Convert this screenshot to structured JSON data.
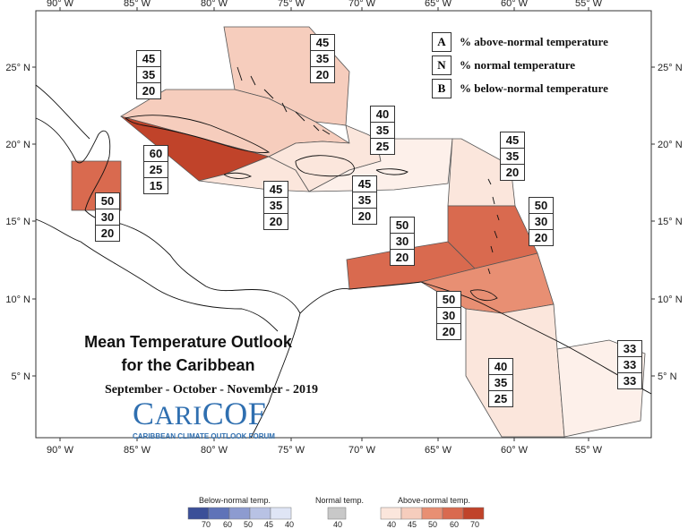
{
  "map": {
    "lon_labels": [
      "90° W",
      "85° W",
      "80° W",
      "75° W",
      "70° W",
      "65° W",
      "60° W",
      "55° W"
    ],
    "lat_labels": [
      "25° N",
      "20° N",
      "15° N",
      "10° N",
      "5° N"
    ],
    "colors": {
      "a70": "#c0432a",
      "a60": "#d96a4f",
      "a50": "#e88f73",
      "a45": "#f6cdbd",
      "a40": "#fbe6dc",
      "n": "#fdf0ea",
      "land_outline": "#111111",
      "frame": "#333333"
    }
  },
  "legend": {
    "items": [
      {
        "key": "A",
        "text": "% above-normal temperature"
      },
      {
        "key": "N",
        "text": "% normal temperature"
      },
      {
        "key": "B",
        "text": "% below-normal temperature"
      }
    ]
  },
  "title": {
    "line1": "Mean Temperature Outlook",
    "line2": "for the Caribbean",
    "period": "September - October - November - 2019"
  },
  "logo": {
    "main_first": "C",
    "main_rest": "ARI",
    "main_last": "COF",
    "sub": "CARIBBEAN CLIMATE OUTLOOK FORUM"
  },
  "probabilities": [
    {
      "region": "bahamas-north",
      "A": "45",
      "N": "35",
      "B": "20"
    },
    {
      "region": "cuba",
      "A": "45",
      "N": "35",
      "B": "20"
    },
    {
      "region": "cayman-jamaica",
      "A": "60",
      "N": "25",
      "B": "15"
    },
    {
      "region": "belize",
      "A": "50",
      "N": "30",
      "B": "20"
    },
    {
      "region": "turks-caicos",
      "A": "40",
      "N": "35",
      "B": "25"
    },
    {
      "region": "jamaica-south",
      "A": "45",
      "N": "35",
      "B": "20"
    },
    {
      "region": "hispaniola-pr",
      "A": "45",
      "N": "35",
      "B": "20"
    },
    {
      "region": "leeward-north",
      "A": "45",
      "N": "35",
      "B": "20"
    },
    {
      "region": "lesser-antilles",
      "A": "50",
      "N": "30",
      "B": "20"
    },
    {
      "region": "abc-islands",
      "A": "50",
      "N": "30",
      "B": "20"
    },
    {
      "region": "trinidad",
      "A": "50",
      "N": "30",
      "B": "20"
    },
    {
      "region": "guyana",
      "A": "40",
      "N": "35",
      "B": "25"
    },
    {
      "region": "french-guiana",
      "A": "33",
      "N": "33",
      "B": "33"
    }
  ],
  "colorbar": {
    "below_title": "Below-normal temp.",
    "normal_title": "Normal temp.",
    "above_title": "Above-normal temp.",
    "below_ticks": [
      "70",
      "60",
      "50",
      "45",
      "40"
    ],
    "normal_ticks": [
      "40"
    ],
    "above_ticks": [
      "40",
      "45",
      "50",
      "60",
      "70"
    ],
    "below_colors": [
      "#3b4f98",
      "#5f73b8",
      "#8d9bd0",
      "#b8c2e4",
      "#dfe5f5"
    ],
    "normal_color": "#c8c8c8",
    "above_colors": [
      "#fbe6dc",
      "#f6cdbd",
      "#e88f73",
      "#d96a4f",
      "#c0432a"
    ]
  }
}
